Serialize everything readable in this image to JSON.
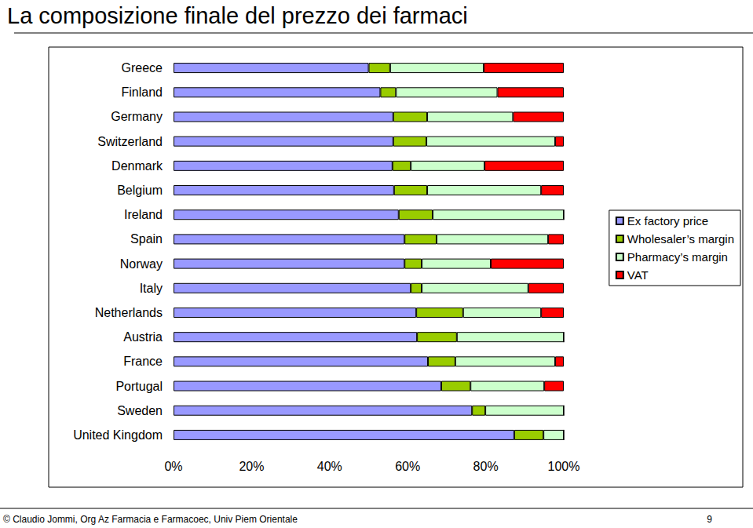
{
  "chart_data": {
    "type": "bar",
    "title": "La composizione finale del prezzo dei farmaci",
    "annotations": [
      "© Claudio Jommi, Org Az Farmacia e Farmacoec, Univ Piem Orientale",
      "9"
    ],
    "orientation": "horizontal",
    "stacked": true,
    "grid": false,
    "legend": "right",
    "categories": [
      "Greece",
      "Finland",
      "Germany",
      "Switzerland",
      "Denmark",
      "Belgium",
      "Ireland",
      "Spain",
      "Norway",
      "Italy",
      "Netherlands",
      "Austria",
      "France",
      "Portugal",
      "Sweden",
      "United Kingdom"
    ],
    "series": [
      {
        "name": "Ex factory price",
        "color": "#9999ff",
        "values": [
          50,
          53,
          56.3,
          56.3,
          56.1,
          56.5,
          57.7,
          59.2,
          59.2,
          60.8,
          62.2,
          62.4,
          65.2,
          68.6,
          76.5,
          87.3
        ]
      },
      {
        "name": "Wholesaler’s margin",
        "color": "#99cc00",
        "values": [
          5.5,
          4,
          8.7,
          8.5,
          4.7,
          8.5,
          8.7,
          8.2,
          4.4,
          2.8,
          12,
          10.2,
          7,
          7.5,
          3.4,
          7.5
        ]
      },
      {
        "name": "Pharmacy’s margin",
        "color": "#ccffcc",
        "values": [
          24,
          26,
          22,
          33,
          18.9,
          29.2,
          33.6,
          28.6,
          17.7,
          27.3,
          20,
          27.4,
          25.6,
          18.9,
          20.1,
          5.2
        ]
      },
      {
        "name": "VAT",
        "color": "#ff0000",
        "values": [
          20.5,
          17,
          13,
          2.2,
          20.3,
          5.8,
          0,
          4,
          18.7,
          9.1,
          5.8,
          0,
          2.2,
          5,
          0,
          0
        ]
      }
    ],
    "xlim": [
      0,
      100
    ],
    "xticks": [
      {
        "value": 0,
        "label": "0%"
      },
      {
        "value": 20,
        "label": "20%"
      },
      {
        "value": 40,
        "label": "40%"
      },
      {
        "value": 60,
        "label": "60%"
      },
      {
        "value": 80,
        "label": "80%"
      },
      {
        "value": 100,
        "label": "100%"
      }
    ]
  }
}
